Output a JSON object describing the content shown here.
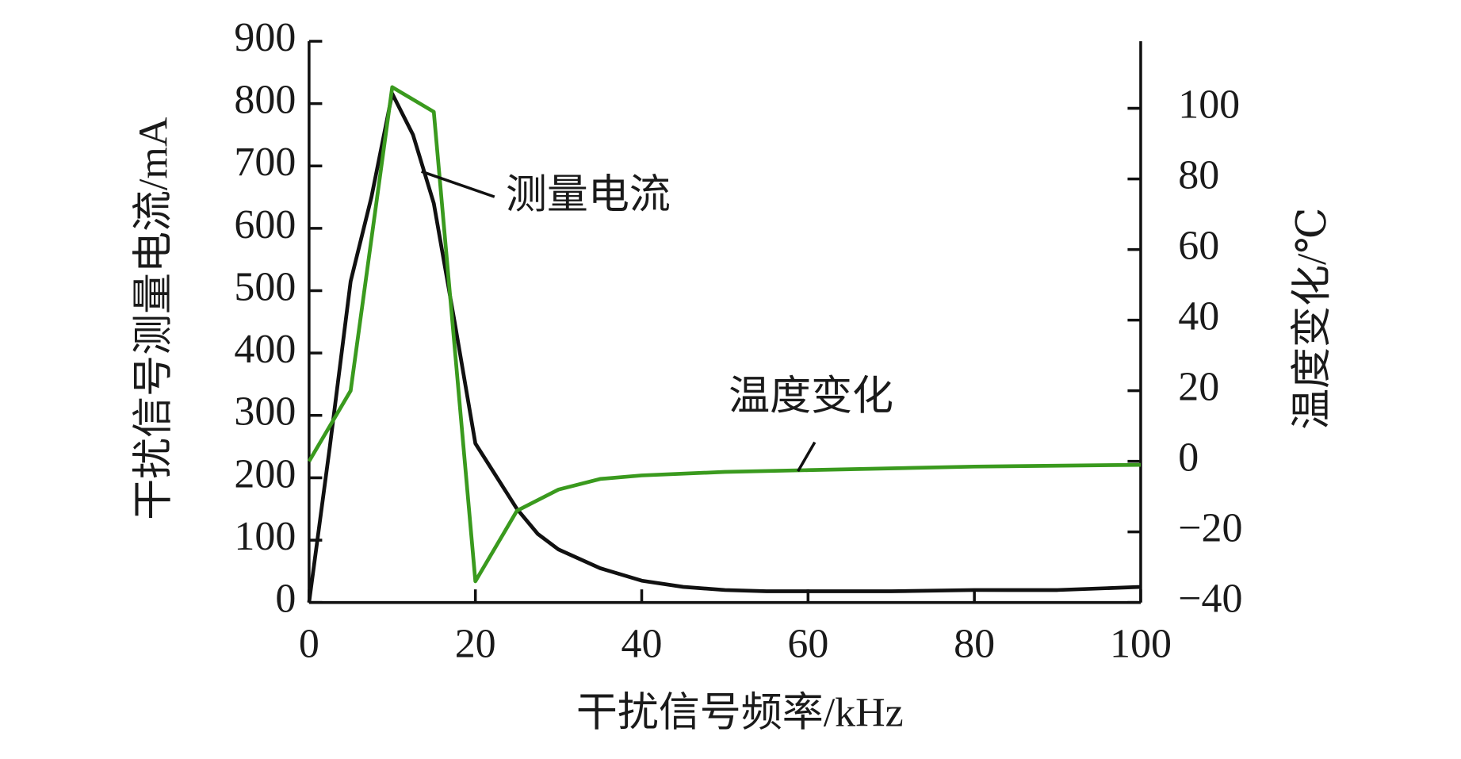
{
  "chart_data": {
    "type": "line",
    "x_label": "干扰信号频率/kHz",
    "y_label": "干扰信号测量电流/mA",
    "y2_label": "温度变化/℃",
    "xlim": [
      0,
      100
    ],
    "xticks": [
      0,
      20,
      40,
      60,
      80,
      100
    ],
    "ylim": [
      0,
      900
    ],
    "yticks": [
      0,
      100,
      200,
      300,
      400,
      500,
      600,
      700,
      800,
      900
    ],
    "y2lim": [
      -40,
      119
    ],
    "y2ticks": [
      {
        "value": -40,
        "label": "−40"
      },
      {
        "value": -20,
        "label": "−20"
      },
      0,
      20,
      40,
      60,
      80,
      100
    ],
    "series": [
      {
        "name": "测量电流",
        "color": "#111111",
        "x": [
          0,
          2.5,
          5,
          7.5,
          10,
          12.5,
          15,
          17.5,
          20,
          25,
          27.5,
          30,
          35,
          40,
          45,
          50,
          55,
          60,
          70,
          80,
          90,
          100
        ],
        "values": [
          0,
          250,
          515,
          650,
          816,
          750,
          640,
          450,
          255,
          150,
          110,
          85,
          55,
          35,
          25,
          20,
          18,
          18,
          18,
          20,
          20,
          25
        ]
      },
      {
        "name": "温度变化",
        "color": "#3a9a1e",
        "axis": "y2",
        "x": [
          0,
          5,
          10,
          15,
          20,
          25,
          30,
          35,
          40,
          50,
          60,
          80,
          100
        ],
        "values": [
          0,
          20,
          106,
          99,
          -34,
          -14,
          -8,
          -5,
          -4,
          -3,
          -2.5,
          -1.5,
          -1
        ]
      }
    ]
  }
}
